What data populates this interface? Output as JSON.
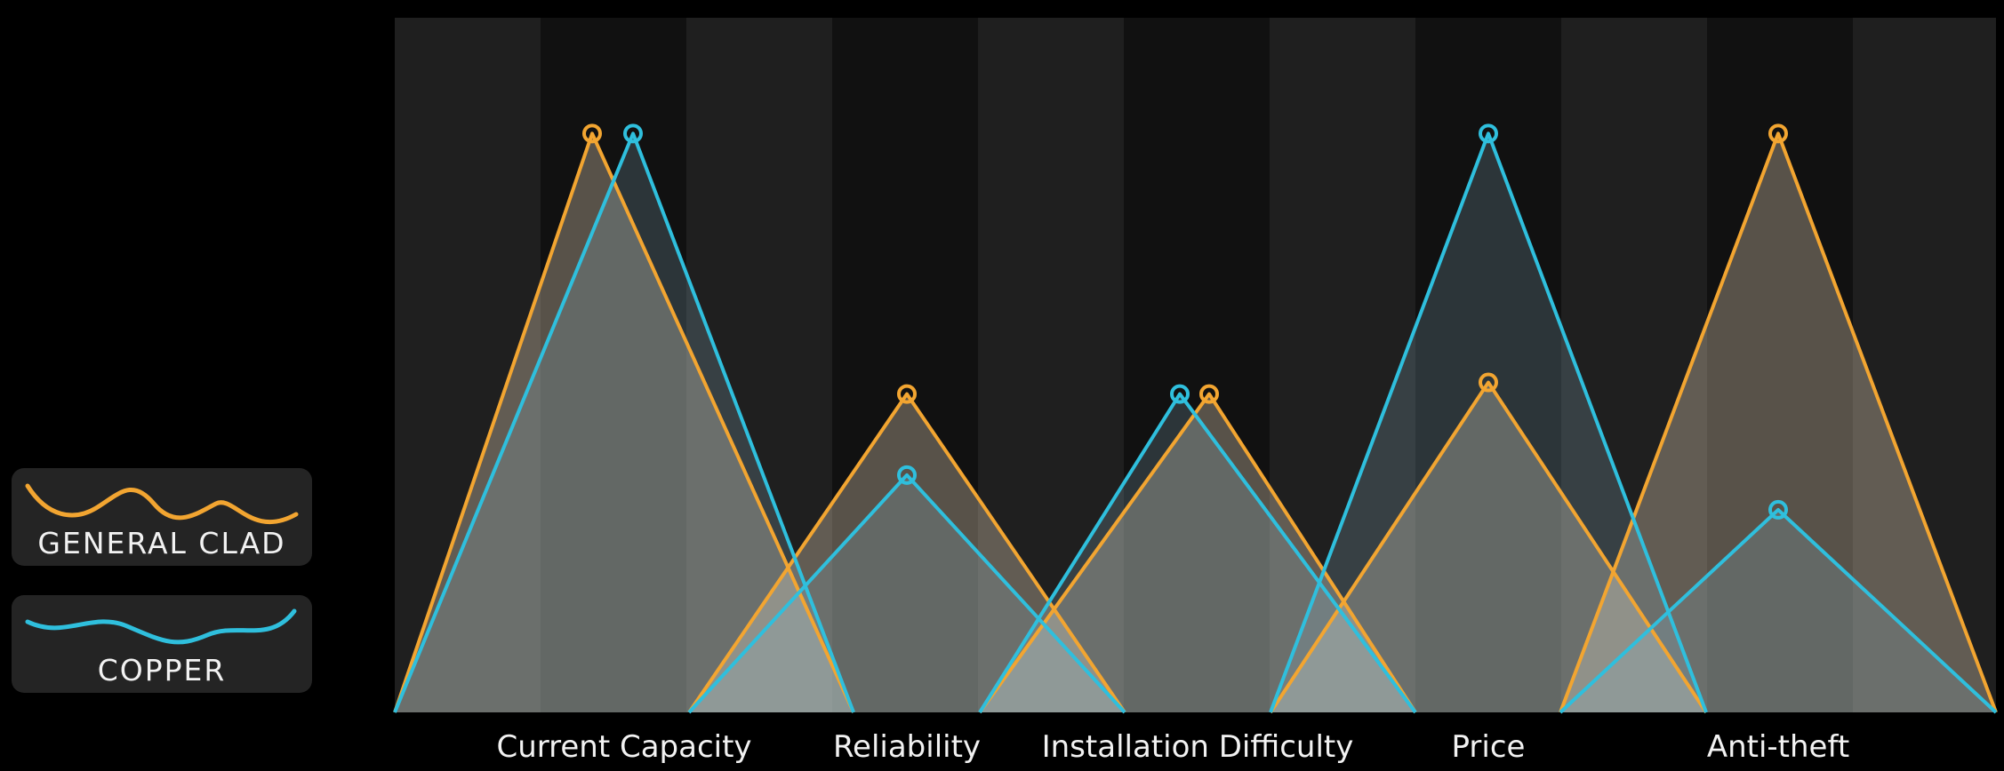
{
  "chart_data": {
    "type": "area",
    "categories": [
      "Current Capacity",
      "Reliability",
      "Installation Difficulty",
      "Price",
      "Anti-theft"
    ],
    "series": [
      {
        "name": "GENERAL CLAD",
        "values": [
          100,
          55,
          55,
          57,
          100
        ]
      },
      {
        "name": "COPPER",
        "values": [
          100,
          41,
          55,
          100,
          35
        ]
      }
    ],
    "ylim": [
      0,
      120
    ],
    "grid": false,
    "legend_position": "left",
    "colors": {
      "GENERAL CLAD": "#f2a531",
      "COPPER": "#2fbfdd",
      "background": "#000000",
      "band": "#1f1f1f",
      "legend_box": "#242424"
    }
  },
  "legend": {
    "items": [
      {
        "label": "GENERAL CLAD"
      },
      {
        "label": "COPPER"
      }
    ]
  }
}
